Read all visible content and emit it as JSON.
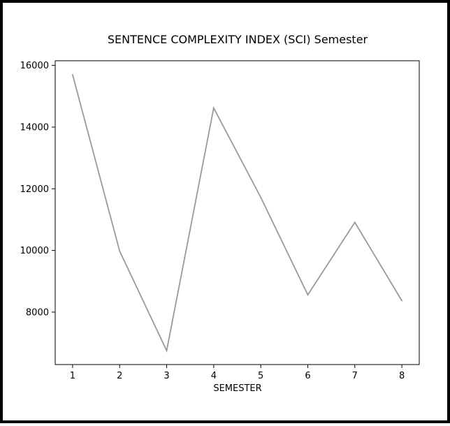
{
  "chart_data": {
    "type": "line",
    "title": "SENTENCE COMPLEXITY INDEX (SCI) Semester",
    "xlabel": "SEMESTER",
    "ylabel": "",
    "x": [
      1,
      2,
      3,
      4,
      5,
      6,
      7,
      8
    ],
    "x_ticks": [
      "1",
      "2",
      "3",
      "4",
      "5",
      "6",
      "7",
      "8"
    ],
    "xlim": [
      0.63,
      8.37
    ],
    "y_ticks": [
      8000,
      10000,
      12000,
      14000,
      16000
    ],
    "y_tick_labels": [
      "8000",
      "10000",
      "12000",
      "14000",
      "16000"
    ],
    "ylim": [
      6300,
      16150
    ],
    "grid": false,
    "series": [
      {
        "values": [
          15700,
          9980,
          6750,
          14620,
          11720,
          8560,
          10910,
          8370
        ],
        "color": "#999999"
      }
    ]
  }
}
